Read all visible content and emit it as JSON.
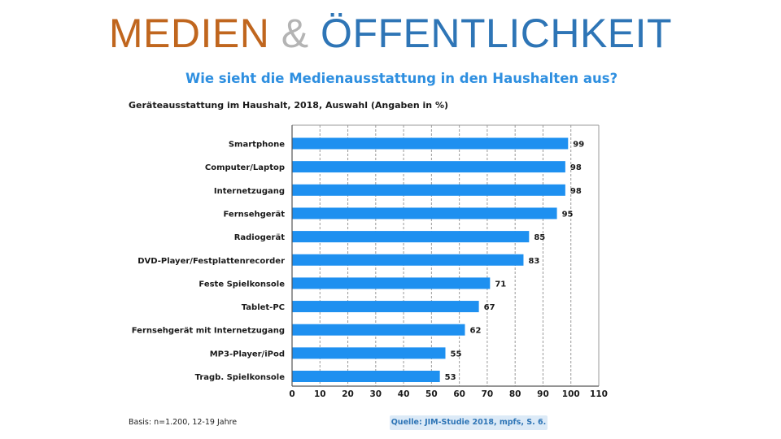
{
  "slide": {
    "title_part1": "MEDIEN",
    "title_part2": "&",
    "title_part3": "ÖFFENTLICHKEIT"
  },
  "colors": {
    "title_part1": "#c0661e",
    "title_part2": "#b4b4b4",
    "title_part3": "#2e75b6",
    "heading": "#2e8fe0",
    "bar": "#1e90f0",
    "grid": "#9a9a9a",
    "axis": "#555555",
    "source_bg": "#dceaf7",
    "source_text": "#2e75b6"
  },
  "chart_data": {
    "type": "bar",
    "orientation": "horizontal",
    "heading": "Wie sieht die Medienausstattung in den Haushalten aus?",
    "title": "Geräteausstattung im Haushalt, 2018, Auswahl (Angaben in %)",
    "categories": [
      "Smartphone",
      "Computer/Laptop",
      "Internetzugang",
      "Fernsehgerät",
      "Radiogerät",
      "DVD-Player/Festplattenrecorder",
      "Feste Spielkonsole",
      "Tablet-PC",
      "Fernsehgerät mit Internetzugang",
      "MP3-Player/iPod",
      "Tragb. Spielkonsole"
    ],
    "values": [
      99,
      98,
      98,
      95,
      85,
      83,
      71,
      67,
      62,
      55,
      53
    ],
    "value_labels": [
      "99",
      "98",
      "98",
      "95",
      "85",
      "83",
      "71",
      "67",
      "62",
      "55",
      "53"
    ],
    "xlim": [
      0,
      110
    ],
    "xticks": [
      0,
      10,
      20,
      30,
      40,
      50,
      60,
      70,
      80,
      90,
      100,
      110
    ],
    "xtick_labels": [
      "0",
      "10",
      "20",
      "30",
      "40",
      "50",
      "60",
      "70",
      "80",
      "90",
      "100",
      "110"
    ],
    "grid": "vertical dashed",
    "xlabel": "",
    "ylabel": ""
  },
  "footer": {
    "basis": "Basis: n=1.200, 12-19 Jahre",
    "source": "Quelle: JIM-Studie 2018, mpfs, S. 6."
  }
}
